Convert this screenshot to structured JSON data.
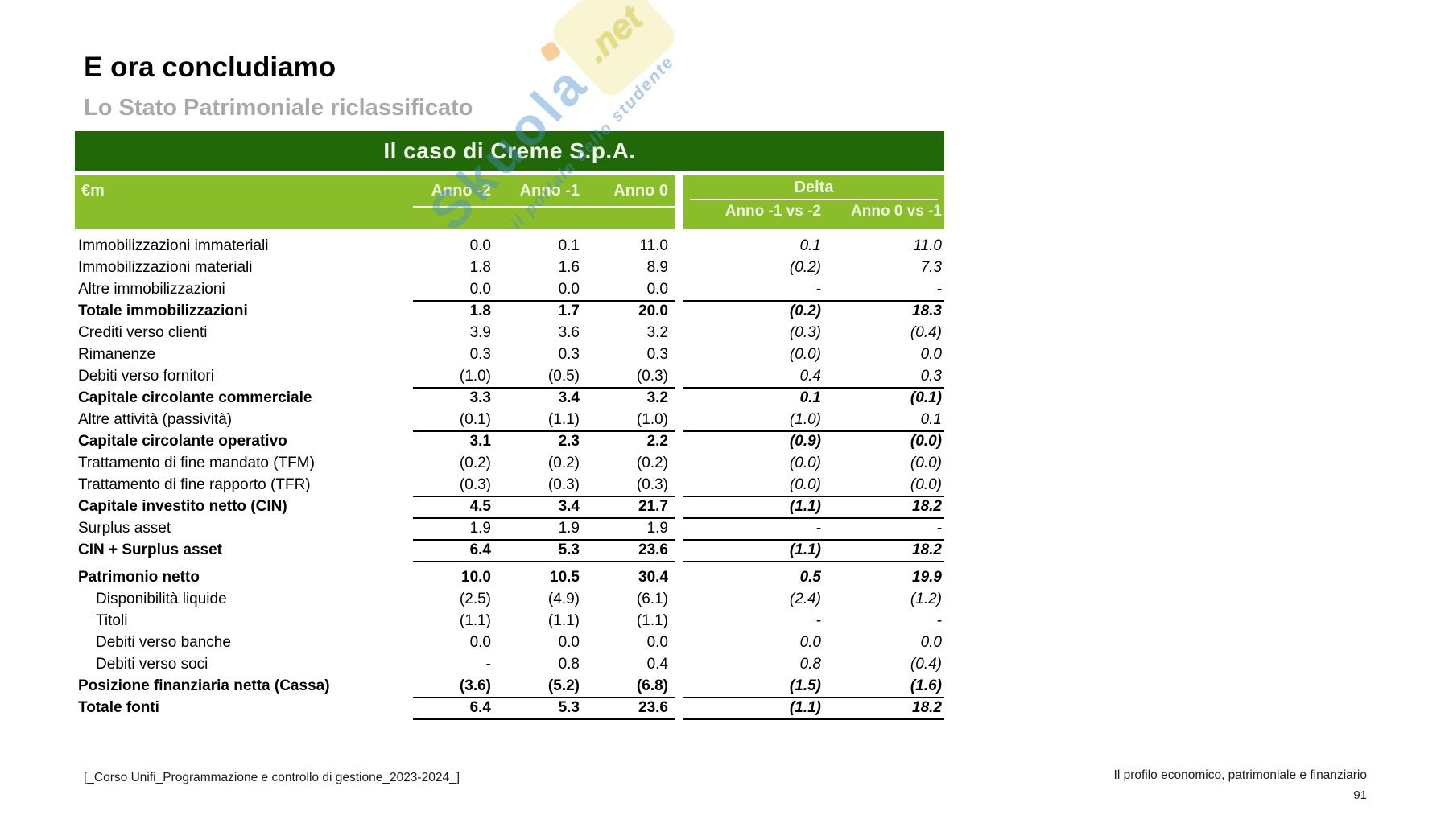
{
  "page": {
    "title": "E ora concludiamo",
    "subtitle": "Lo Stato Patrimoniale riclassificato",
    "footer_left": "[_Corso Unifi_Programmazione e controllo di gestione_2023-2024_]",
    "footer_right": "Il profilo economico, patrimoniale e finanziario",
    "page_number": "91"
  },
  "watermark": {
    "brand": "Skuola",
    "brand_suffix": ".net",
    "tagline": "il portale dello studente"
  },
  "colors": {
    "dark_green": "#216908",
    "light_green": "#89bd2a",
    "header_text": "#eef6e0",
    "subtitle_gray": "#a9a9a9"
  },
  "table": {
    "banner": "Il caso di Creme S.p.A.",
    "unit_label": "€m",
    "year_columns": [
      "Anno -2",
      "Anno -1",
      "Anno 0"
    ],
    "delta_label": "Delta",
    "delta_columns": [
      "Anno -1 vs -2",
      "Anno 0 vs -1"
    ],
    "rows": [
      {
        "label": "Immobilizzazioni immateriali",
        "v": [
          "0.0",
          "0.1",
          "11.0"
        ],
        "d": [
          "0.1",
          "11.0"
        ]
      },
      {
        "label": "Immobilizzazioni materiali",
        "v": [
          "1.8",
          "1.6",
          "8.9"
        ],
        "d": [
          "(0.2)",
          "7.3"
        ]
      },
      {
        "label": "Altre immobilizzazioni",
        "v": [
          "0.0",
          "0.0",
          "0.0"
        ],
        "d": [
          "-",
          "-"
        ],
        "underline": true
      },
      {
        "label": "Totale immobilizzazioni",
        "bold": true,
        "v": [
          "1.8",
          "1.7",
          "20.0"
        ],
        "d": [
          "(0.2)",
          "18.3"
        ]
      },
      {
        "label": "Crediti verso clienti",
        "v": [
          "3.9",
          "3.6",
          "3.2"
        ],
        "d": [
          "(0.3)",
          "(0.4)"
        ]
      },
      {
        "label": "Rimanenze",
        "v": [
          "0.3",
          "0.3",
          "0.3"
        ],
        "d": [
          "(0.0)",
          "0.0"
        ]
      },
      {
        "label": "Debiti verso fornitori",
        "v": [
          "(1.0)",
          "(0.5)",
          "(0.3)"
        ],
        "d": [
          "0.4",
          "0.3"
        ],
        "underline": true
      },
      {
        "label": "Capitale circolante commerciale",
        "bold": true,
        "v": [
          "3.3",
          "3.4",
          "3.2"
        ],
        "d": [
          "0.1",
          "(0.1)"
        ]
      },
      {
        "label": "Altre attività (passività)",
        "v": [
          "(0.1)",
          "(1.1)",
          "(1.0)"
        ],
        "d": [
          "(1.0)",
          "0.1"
        ],
        "underline": true
      },
      {
        "label": "Capitale circolante operativo",
        "bold": true,
        "v": [
          "3.1",
          "2.3",
          "2.2"
        ],
        "d": [
          "(0.9)",
          "(0.0)"
        ]
      },
      {
        "label": "Trattamento di fine mandato (TFM)",
        "v": [
          "(0.2)",
          "(0.2)",
          "(0.2)"
        ],
        "d": [
          "(0.0)",
          "(0.0)"
        ]
      },
      {
        "label": "Trattamento di fine rapporto (TFR)",
        "v": [
          "(0.3)",
          "(0.3)",
          "(0.3)"
        ],
        "d": [
          "(0.0)",
          "(0.0)"
        ],
        "underline": true
      },
      {
        "label": "Capitale investito netto (CIN)",
        "bold": true,
        "v": [
          "4.5",
          "3.4",
          "21.7"
        ],
        "d": [
          "(1.1)",
          "18.2"
        ],
        "underline": true
      },
      {
        "label": "Surplus asset",
        "v": [
          "1.9",
          "1.9",
          "1.9"
        ],
        "d": [
          "-",
          "-"
        ],
        "underline": true
      },
      {
        "label": "CIN + Surplus asset",
        "bold": true,
        "v": [
          "6.4",
          "5.3",
          "23.6"
        ],
        "d": [
          "(1.1)",
          "18.2"
        ],
        "underline": true
      },
      {
        "label": "Patrimonio netto",
        "bold": true,
        "v": [
          "10.0",
          "10.5",
          "30.4"
        ],
        "d": [
          "0.5",
          "19.9"
        ],
        "gap_before": true
      },
      {
        "label": "Disponibilità liquide",
        "indent": true,
        "v": [
          "(2.5)",
          "(4.9)",
          "(6.1)"
        ],
        "d": [
          "(2.4)",
          "(1.2)"
        ]
      },
      {
        "label": "Titoli",
        "indent": true,
        "v": [
          "(1.1)",
          "(1.1)",
          "(1.1)"
        ],
        "d": [
          "-",
          "-"
        ]
      },
      {
        "label": "Debiti verso banche",
        "indent": true,
        "v": [
          "0.0",
          "0.0",
          "0.0"
        ],
        "d": [
          "0.0",
          "0.0"
        ]
      },
      {
        "label": "Debiti verso soci",
        "indent": true,
        "v": [
          "-",
          "0.8",
          "0.4"
        ],
        "d": [
          "0.8",
          "(0.4)"
        ]
      },
      {
        "label": "Posizione finanziaria netta (Cassa)",
        "bold": true,
        "v": [
          "(3.6)",
          "(5.2)",
          "(6.8)"
        ],
        "d": [
          "(1.5)",
          "(1.6)"
        ],
        "underline": true
      },
      {
        "label": "Totale fonti",
        "bold": true,
        "v": [
          "6.4",
          "5.3",
          "23.6"
        ],
        "d": [
          "(1.1)",
          "18.2"
        ],
        "underline": true
      }
    ]
  }
}
